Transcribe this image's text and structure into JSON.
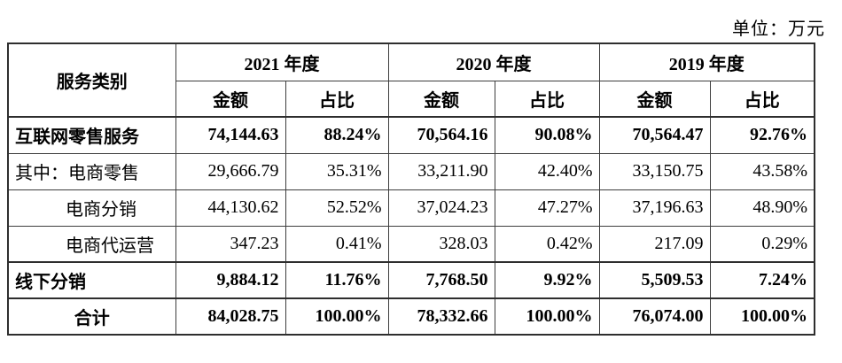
{
  "unit_label": "单位：万元",
  "table": {
    "category_header": "服务类别",
    "year_groups": [
      {
        "year": "2021 年度",
        "amount_label": "金额",
        "ratio_label": "占比"
      },
      {
        "year": "2020 年度",
        "amount_label": "金额",
        "ratio_label": "占比"
      },
      {
        "year": "2019 年度",
        "amount_label": "金额",
        "ratio_label": "占比"
      }
    ],
    "rows": [
      {
        "label": "互联网零售服务",
        "bold": true,
        "indent": false,
        "center": false,
        "divider_above": false,
        "values": [
          "74,144.63",
          "88.24%",
          "70,564.16",
          "90.08%",
          "70,564.47",
          "92.76%"
        ]
      },
      {
        "label": "其中：电商零售",
        "bold": false,
        "indent": false,
        "center": false,
        "divider_above": false,
        "values": [
          "29,666.79",
          "35.31%",
          "33,211.90",
          "42.40%",
          "33,150.75",
          "43.58%"
        ]
      },
      {
        "label": "电商分销",
        "bold": false,
        "indent": true,
        "center": false,
        "divider_above": false,
        "values": [
          "44,130.62",
          "52.52%",
          "37,024.23",
          "47.27%",
          "37,196.63",
          "48.90%"
        ]
      },
      {
        "label": "电商代运营",
        "bold": false,
        "indent": true,
        "center": false,
        "divider_above": false,
        "values": [
          "347.23",
          "0.41%",
          "328.03",
          "0.42%",
          "217.09",
          "0.29%"
        ]
      },
      {
        "label": "线下分销",
        "bold": true,
        "indent": false,
        "center": false,
        "divider_above": true,
        "values": [
          "9,884.12",
          "11.76%",
          "7,768.50",
          "9.92%",
          "5,509.53",
          "7.24%"
        ]
      },
      {
        "label": "合计",
        "bold": true,
        "indent": false,
        "center": true,
        "divider_above": true,
        "values": [
          "84,028.75",
          "100.00%",
          "78,332.66",
          "100.00%",
          "76,074.00",
          "100.00%"
        ]
      }
    ]
  }
}
